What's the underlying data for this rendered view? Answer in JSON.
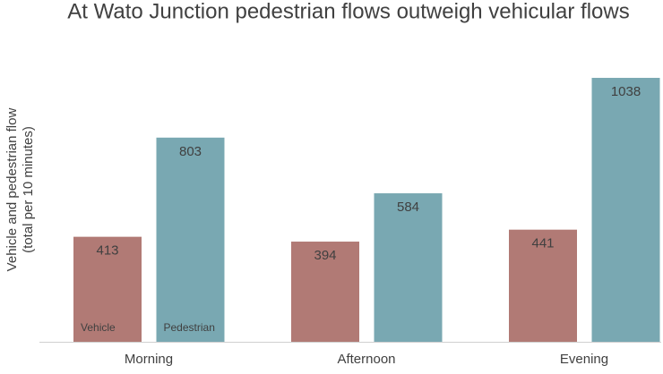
{
  "chart_data": {
    "type": "bar",
    "title": "At Wato Junction pedestrian flows outweigh vehicular flows",
    "y_label": [
      "Vehicle and pedestrian flow",
      "(total per 10 minutes)"
    ],
    "categories": [
      "Morning",
      "Afternoon",
      "Evening"
    ],
    "series": [
      {
        "name": "Vehicle",
        "color": "#b17a75",
        "values": [
          413,
          394,
          441
        ]
      },
      {
        "name": "Pedestrian",
        "color": "#79a8b2",
        "values": [
          803,
          584,
          1038
        ]
      }
    ],
    "ylim": [
      0,
      1100
    ]
  }
}
